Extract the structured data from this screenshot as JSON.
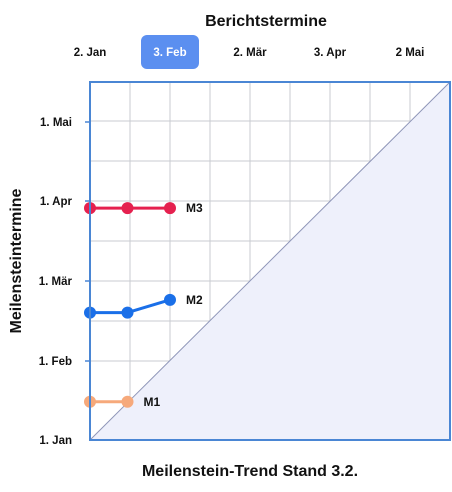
{
  "chart_data": {
    "type": "line",
    "chart_kind": "milestone-trend-analysis",
    "title": "Berichtstermine",
    "xlabel": "Meilenstein-Trend Stand 3.2.",
    "ylabel": "Meilensteintermine",
    "x_ticks": [
      "2. Jan",
      "3. Feb",
      "2. Mär",
      "3. Apr",
      "2 Mai"
    ],
    "x_selected": "3. Feb",
    "y_ticks": [
      "1. Jan",
      "1. Feb",
      "1. Mär",
      "1. Apr",
      "1. Mai"
    ],
    "x_range": [
      "2024-01-02",
      "2024-05-31"
    ],
    "y_range": [
      "2024-01-01",
      "2024-05-31"
    ],
    "grid": true,
    "diagonal_fill": "lower-right",
    "series": [
      {
        "name": "M1",
        "color": "#f6a97b",
        "points": [
          {
            "x": "2024-01-02",
            "y": "2024-01-16"
          },
          {
            "x": "2024-01-17",
            "y": "2024-01-16"
          }
        ]
      },
      {
        "name": "M2",
        "color": "#1a6fe8",
        "points": [
          {
            "x": "2024-01-02",
            "y": "2024-02-20"
          },
          {
            "x": "2024-01-17",
            "y": "2024-02-20"
          },
          {
            "x": "2024-02-03",
            "y": "2024-02-25"
          }
        ]
      },
      {
        "name": "M3",
        "color": "#e5214f",
        "points": [
          {
            "x": "2024-01-02",
            "y": "2024-04-01"
          },
          {
            "x": "2024-01-17",
            "y": "2024-04-01"
          },
          {
            "x": "2024-02-03",
            "y": "2024-04-01"
          }
        ]
      }
    ]
  },
  "colors": {
    "frame": "#4a86d4",
    "grid": "#c9cbd1",
    "diagonal_fill": "#eef0fb",
    "selected_tick_bg": "#5b8ff0"
  }
}
